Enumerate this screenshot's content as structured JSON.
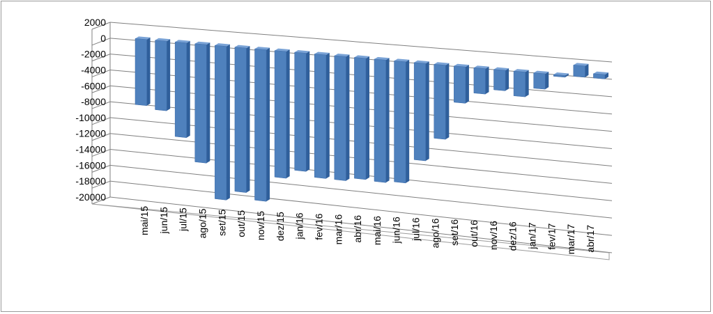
{
  "chart_data": {
    "type": "bar",
    "title": "",
    "xlabel": "",
    "ylabel": "",
    "ylim": [
      -20000,
      2000
    ],
    "yticks": [
      2000,
      0,
      -2000,
      -4000,
      -6000,
      -8000,
      -10000,
      -12000,
      -14000,
      -16000,
      -18000,
      -20000
    ],
    "grid": true,
    "legend": "none",
    "bar_color": "#4f81bd",
    "categories": [
      "mai/15",
      "jun/15",
      "jul/15",
      "ago/15",
      "set/15",
      "out/15",
      "nov/15",
      "dez/15",
      "jan/16",
      "fev/16",
      "mar/16",
      "abr/16",
      "mai/16",
      "jun/16",
      "jul/16",
      "ago/16",
      "set/16",
      "out/16",
      "nov/16",
      "dez/16",
      "jan/17",
      "fev/17",
      "mar/17",
      "abr/17"
    ],
    "values": [
      -8300,
      -8700,
      -11800,
      -14700,
      -19000,
      -17800,
      -18600,
      -15500,
      -14400,
      -15000,
      -15000,
      -14600,
      -14700,
      -14500,
      -11600,
      -8800,
      -4300,
      -3000,
      -2400,
      -2900,
      -1800,
      -200,
      1300,
      500
    ]
  }
}
